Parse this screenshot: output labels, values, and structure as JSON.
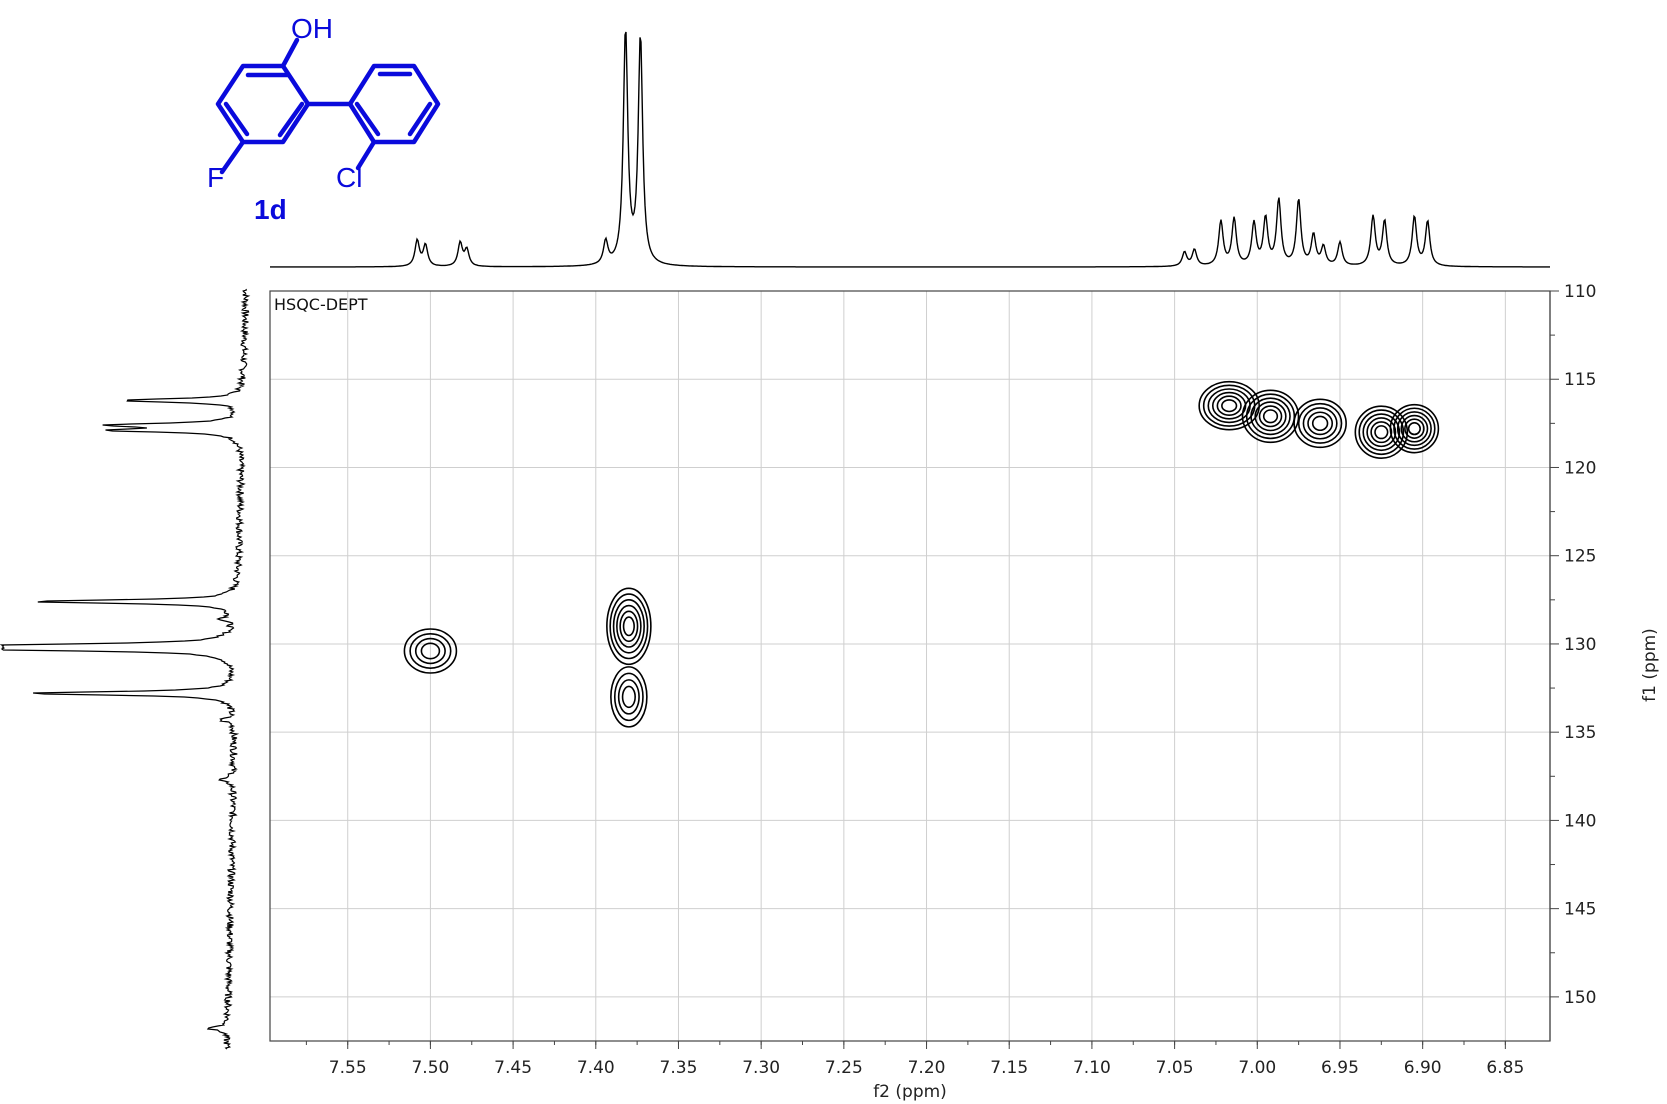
{
  "chart_data": {
    "type": "heatmap",
    "experiment_label": "HSQC-DEPT",
    "xlabel": "f2 (ppm)",
    "ylabel": "f1 (ppm)",
    "xlim": [
      7.597,
      6.823
    ],
    "ylim": [
      110,
      152.5
    ],
    "x_ticks": [
      7.55,
      7.5,
      7.45,
      7.4,
      7.35,
      7.3,
      7.25,
      7.2,
      7.15,
      7.1,
      7.05,
      7.0,
      6.95,
      6.9,
      6.85
    ],
    "x_tick_labels": [
      "7.55",
      "7.50",
      "7.45",
      "7.40",
      "7.35",
      "7.30",
      "7.25",
      "7.20",
      "7.15",
      "7.10",
      "7.05",
      "7.00",
      "6.95",
      "6.90",
      "6.85"
    ],
    "y_ticks": [
      110,
      115,
      120,
      125,
      130,
      135,
      140,
      145,
      150
    ],
    "y_tick_labels": [
      "110",
      "115",
      "120",
      "125",
      "130",
      "135",
      "140",
      "145",
      "150"
    ],
    "grid": true,
    "cross_peaks": [
      {
        "f2": 7.5,
        "f1": 130.4,
        "levels": 4
      },
      {
        "f2": 7.38,
        "f1": 129.0,
        "levels": 6
      },
      {
        "f2": 7.38,
        "f1": 133.0,
        "levels": 4
      },
      {
        "f2": 7.017,
        "f1": 116.5,
        "levels": 6
      },
      {
        "f2": 6.992,
        "f1": 117.1,
        "levels": 6
      },
      {
        "f2": 6.962,
        "f1": 117.5,
        "levels": 5
      },
      {
        "f2": 6.925,
        "f1": 118.0,
        "levels": 6
      },
      {
        "f2": 6.905,
        "f1": 117.8,
        "levels": 6
      }
    ],
    "proton_projection_peaks": [
      {
        "ppm": 7.508,
        "height": 0.11
      },
      {
        "ppm": 7.503,
        "height": 0.09
      },
      {
        "ppm": 7.482,
        "height": 0.1
      },
      {
        "ppm": 7.478,
        "height": 0.07
      },
      {
        "ppm": 7.394,
        "height": 0.1
      },
      {
        "ppm": 7.382,
        "height": 1.0
      },
      {
        "ppm": 7.373,
        "height": 0.97
      },
      {
        "ppm": 7.044,
        "height": 0.06
      },
      {
        "ppm": 7.038,
        "height": 0.07
      },
      {
        "ppm": 7.022,
        "height": 0.19
      },
      {
        "ppm": 7.014,
        "height": 0.2
      },
      {
        "ppm": 7.002,
        "height": 0.18
      },
      {
        "ppm": 6.995,
        "height": 0.2
      },
      {
        "ppm": 6.987,
        "height": 0.28
      },
      {
        "ppm": 6.975,
        "height": 0.28
      },
      {
        "ppm": 6.966,
        "height": 0.13
      },
      {
        "ppm": 6.96,
        "height": 0.08
      },
      {
        "ppm": 6.95,
        "height": 0.1
      },
      {
        "ppm": 6.93,
        "height": 0.21
      },
      {
        "ppm": 6.923,
        "height": 0.19
      },
      {
        "ppm": 6.905,
        "height": 0.21
      },
      {
        "ppm": 6.897,
        "height": 0.19
      }
    ],
    "carbon_projection_peaks": [
      {
        "ppm": 116.2,
        "height": 0.52
      },
      {
        "ppm": 117.6,
        "height": 0.53
      },
      {
        "ppm": 117.9,
        "height": 0.53
      },
      {
        "ppm": 127.6,
        "height": 0.88
      },
      {
        "ppm": 128.6,
        "height": 0.05
      },
      {
        "ppm": 130.1,
        "height": 1.0
      },
      {
        "ppm": 130.3,
        "height": 0.91
      },
      {
        "ppm": 132.8,
        "height": 0.89
      },
      {
        "ppm": 134.3,
        "height": 0.06
      },
      {
        "ppm": 137.7,
        "height": 0.07
      },
      {
        "ppm": 151.8,
        "height": 0.08
      }
    ]
  },
  "structure": {
    "color": "#0a0adc",
    "compound_label": "1d",
    "atoms": {
      "hydroxyl": "OH",
      "fluorine": "F",
      "chlorine": "Cl"
    }
  }
}
